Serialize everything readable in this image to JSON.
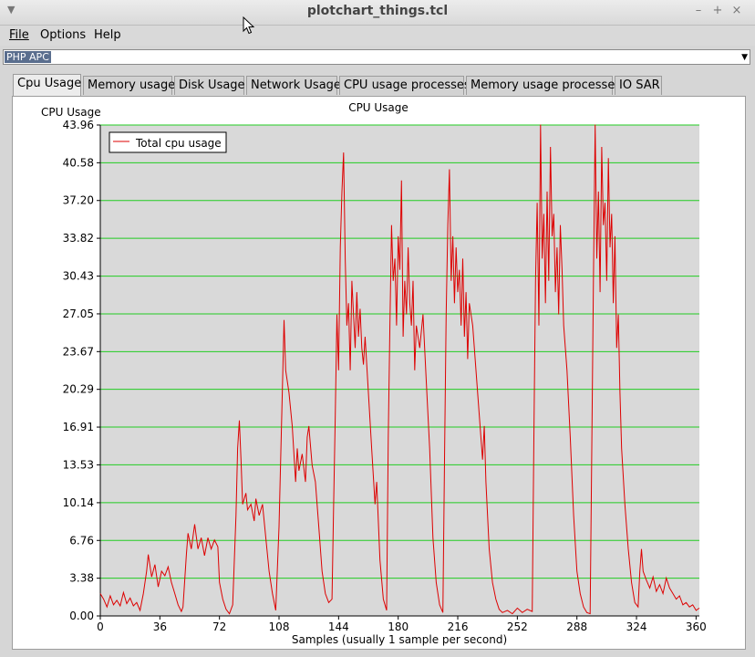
{
  "window": {
    "title": "plotchart_things.tcl",
    "controls": [
      "–",
      "+",
      "×"
    ]
  },
  "menu": {
    "file": "File",
    "options": "Options",
    "help": "Help"
  },
  "selector": {
    "value": "PHP APC"
  },
  "tabs": [
    "Cpu Usage",
    "Memory usage",
    "Disk Usage",
    "Network Usage",
    "CPU usage processes",
    "Memory usage processes",
    "IO SAR"
  ],
  "active_tab": 0,
  "colors": {
    "series": "#dd0000",
    "grid": "#22cc22",
    "plot_bg": "#d9d9d9"
  },
  "chart_data": {
    "type": "line",
    "title": "CPU Usage",
    "ylabel": "CPU Usage",
    "xlabel": "Samples (usually 1 sample per second)",
    "xlim": [
      0,
      362
    ],
    "ylim": [
      0,
      43.96
    ],
    "x_ticks": [
      "0",
      "36",
      "72",
      "108",
      "144",
      "180",
      "216",
      "252",
      "288",
      "324",
      "360"
    ],
    "y_ticks": [
      "0.00",
      "3.38",
      "6.76",
      "10.14",
      "13.53",
      "16.91",
      "20.29",
      "23.67",
      "27.05",
      "30.43",
      "33.82",
      "37.20",
      "40.58",
      "43.96"
    ],
    "grid": true,
    "legend_position": "top-left",
    "series": [
      {
        "name": "Total cpu usage",
        "points": [
          [
            0,
            2.0
          ],
          [
            2,
            1.5
          ],
          [
            4,
            0.8
          ],
          [
            6,
            1.8
          ],
          [
            8,
            1.0
          ],
          [
            10,
            1.4
          ],
          [
            12,
            0.9
          ],
          [
            14,
            2.1
          ],
          [
            16,
            1.1
          ],
          [
            18,
            1.6
          ],
          [
            20,
            0.9
          ],
          [
            22,
            1.2
          ],
          [
            24,
            0.5
          ],
          [
            26,
            2.0
          ],
          [
            28,
            4.0
          ],
          [
            29,
            5.5
          ],
          [
            31,
            3.5
          ],
          [
            33,
            4.6
          ],
          [
            35,
            2.6
          ],
          [
            37,
            4.0
          ],
          [
            39,
            3.6
          ],
          [
            41,
            4.4
          ],
          [
            43,
            3.0
          ],
          [
            45,
            2.0
          ],
          [
            47,
            1.0
          ],
          [
            49,
            0.4
          ],
          [
            50,
            0.8
          ],
          [
            52,
            5.5
          ],
          [
            53,
            7.4
          ],
          [
            55,
            6.0
          ],
          [
            57,
            8.2
          ],
          [
            59,
            6.0
          ],
          [
            61,
            7.0
          ],
          [
            63,
            5.4
          ],
          [
            65,
            7.0
          ],
          [
            67,
            6.0
          ],
          [
            69,
            6.8
          ],
          [
            71,
            6.2
          ],
          [
            72,
            3.0
          ],
          [
            74,
            1.5
          ],
          [
            76,
            0.6
          ],
          [
            78,
            0.2
          ],
          [
            80,
            1.0
          ],
          [
            82,
            9.0
          ],
          [
            83,
            15.0
          ],
          [
            84,
            17.5
          ],
          [
            85,
            14.0
          ],
          [
            86,
            10.0
          ],
          [
            88,
            11.0
          ],
          [
            89,
            9.5
          ],
          [
            91,
            10.0
          ],
          [
            93,
            8.5
          ],
          [
            94,
            10.5
          ],
          [
            96,
            9.0
          ],
          [
            98,
            10.0
          ],
          [
            100,
            7.0
          ],
          [
            102,
            4.0
          ],
          [
            104,
            2.0
          ],
          [
            106,
            0.5
          ],
          [
            108,
            8.0
          ],
          [
            109,
            14.0
          ],
          [
            110,
            20.0
          ],
          [
            111,
            26.5
          ],
          [
            112,
            22.0
          ],
          [
            114,
            20.0
          ],
          [
            116,
            17.0
          ],
          [
            118,
            12.0
          ],
          [
            119,
            15.0
          ],
          [
            120,
            13.0
          ],
          [
            122,
            14.5
          ],
          [
            124,
            12.0
          ],
          [
            125,
            16.0
          ],
          [
            126,
            17.0
          ],
          [
            128,
            13.5
          ],
          [
            130,
            12.0
          ],
          [
            132,
            8.0
          ],
          [
            134,
            4.0
          ],
          [
            136,
            2.0
          ],
          [
            138,
            1.2
          ],
          [
            140,
            1.5
          ],
          [
            141,
            10.0
          ],
          [
            142,
            18.0
          ],
          [
            143,
            27.0
          ],
          [
            144,
            22.0
          ],
          [
            145,
            33.0
          ],
          [
            146,
            38.0
          ],
          [
            147,
            41.5
          ],
          [
            148,
            32.0
          ],
          [
            149,
            26.0
          ],
          [
            150,
            28.0
          ],
          [
            151,
            22.0
          ],
          [
            152,
            30.0
          ],
          [
            153,
            27.0
          ],
          [
            154,
            24.0
          ],
          [
            155,
            29.0
          ],
          [
            156,
            25.0
          ],
          [
            157,
            27.5
          ],
          [
            158,
            24.0
          ],
          [
            159,
            22.5
          ],
          [
            160,
            25.0
          ],
          [
            162,
            20.0
          ],
          [
            164,
            15.0
          ],
          [
            166,
            10.0
          ],
          [
            167,
            12.0
          ],
          [
            169,
            5.0
          ],
          [
            171,
            1.5
          ],
          [
            173,
            0.5
          ],
          [
            174,
            16.0
          ],
          [
            175,
            26.0
          ],
          [
            176,
            35.0
          ],
          [
            177,
            30.0
          ],
          [
            178,
            32.0
          ],
          [
            179,
            26.0
          ],
          [
            180,
            34.0
          ],
          [
            181,
            31.0
          ],
          [
            182,
            39.0
          ],
          [
            183,
            25.0
          ],
          [
            184,
            30.0
          ],
          [
            185,
            27.0
          ],
          [
            186,
            33.0
          ],
          [
            187,
            28.0
          ],
          [
            188,
            26.0
          ],
          [
            189,
            30.0
          ],
          [
            190,
            22.0
          ],
          [
            191,
            26.0
          ],
          [
            193,
            24.0
          ],
          [
            195,
            27.0
          ],
          [
            197,
            21.0
          ],
          [
            199,
            15.0
          ],
          [
            201,
            7.0
          ],
          [
            203,
            3.0
          ],
          [
            205,
            1.0
          ],
          [
            207,
            0.3
          ],
          [
            208,
            14.0
          ],
          [
            209,
            27.0
          ],
          [
            210,
            35.0
          ],
          [
            211,
            40.0
          ],
          [
            212,
            30.0
          ],
          [
            213,
            34.0
          ],
          [
            214,
            28.0
          ],
          [
            215,
            33.0
          ],
          [
            216,
            29.0
          ],
          [
            217,
            31.0
          ],
          [
            218,
            26.0
          ],
          [
            219,
            32.0
          ],
          [
            220,
            25.0
          ],
          [
            221,
            29.0
          ],
          [
            222,
            23.0
          ],
          [
            223,
            28.0
          ],
          [
            225,
            26.0
          ],
          [
            227,
            22.0
          ],
          [
            229,
            18.0
          ],
          [
            231,
            14.0
          ],
          [
            232,
            17.0
          ],
          [
            233,
            12.0
          ],
          [
            235,
            6.0
          ],
          [
            237,
            3.0
          ],
          [
            239,
            1.5
          ],
          [
            241,
            0.6
          ],
          [
            243,
            0.3
          ],
          [
            246,
            0.5
          ],
          [
            249,
            0.2
          ],
          [
            252,
            0.7
          ],
          [
            255,
            0.3
          ],
          [
            258,
            0.6
          ],
          [
            261,
            0.4
          ],
          [
            262,
            16.0
          ],
          [
            263,
            30.0
          ],
          [
            264,
            37.0
          ],
          [
            265,
            26.0
          ],
          [
            266,
            44.0
          ],
          [
            267,
            32.0
          ],
          [
            268,
            36.0
          ],
          [
            269,
            28.0
          ],
          [
            270,
            38.0
          ],
          [
            271,
            30.0
          ],
          [
            272,
            42.0
          ],
          [
            273,
            34.0
          ],
          [
            274,
            36.0
          ],
          [
            275,
            29.0
          ],
          [
            276,
            33.0
          ],
          [
            277,
            27.0
          ],
          [
            278,
            35.0
          ],
          [
            279,
            31.0
          ],
          [
            280,
            26.0
          ],
          [
            282,
            22.0
          ],
          [
            284,
            16.0
          ],
          [
            286,
            9.0
          ],
          [
            288,
            4.0
          ],
          [
            290,
            2.0
          ],
          [
            292,
            0.8
          ],
          [
            294,
            0.3
          ],
          [
            296,
            0.2
          ],
          [
            297,
            15.0
          ],
          [
            298,
            30.0
          ],
          [
            299,
            44.0
          ],
          [
            300,
            32.0
          ],
          [
            301,
            38.0
          ],
          [
            302,
            29.0
          ],
          [
            303,
            42.0
          ],
          [
            304,
            35.0
          ],
          [
            305,
            37.0
          ],
          [
            306,
            30.0
          ],
          [
            307,
            41.0
          ],
          [
            308,
            33.0
          ],
          [
            309,
            36.0
          ],
          [
            310,
            28.0
          ],
          [
            311,
            34.0
          ],
          [
            312,
            24.0
          ],
          [
            313,
            27.0
          ],
          [
            314,
            20.0
          ],
          [
            315,
            15.0
          ],
          [
            317,
            10.0
          ],
          [
            319,
            6.0
          ],
          [
            321,
            3.0
          ],
          [
            323,
            1.2
          ],
          [
            325,
            0.8
          ],
          [
            326,
            4.0
          ],
          [
            327,
            6.0
          ],
          [
            328,
            4.0
          ],
          [
            330,
            3.2
          ],
          [
            332,
            2.5
          ],
          [
            334,
            3.5
          ],
          [
            336,
            2.2
          ],
          [
            338,
            2.8
          ],
          [
            340,
            2.0
          ],
          [
            342,
            3.4
          ],
          [
            344,
            2.5
          ],
          [
            346,
            2.0
          ],
          [
            348,
            1.5
          ],
          [
            350,
            1.8
          ],
          [
            352,
            1.0
          ],
          [
            354,
            1.2
          ],
          [
            356,
            0.8
          ],
          [
            358,
            1.0
          ],
          [
            360,
            0.5
          ],
          [
            362,
            0.7
          ]
        ]
      }
    ]
  }
}
